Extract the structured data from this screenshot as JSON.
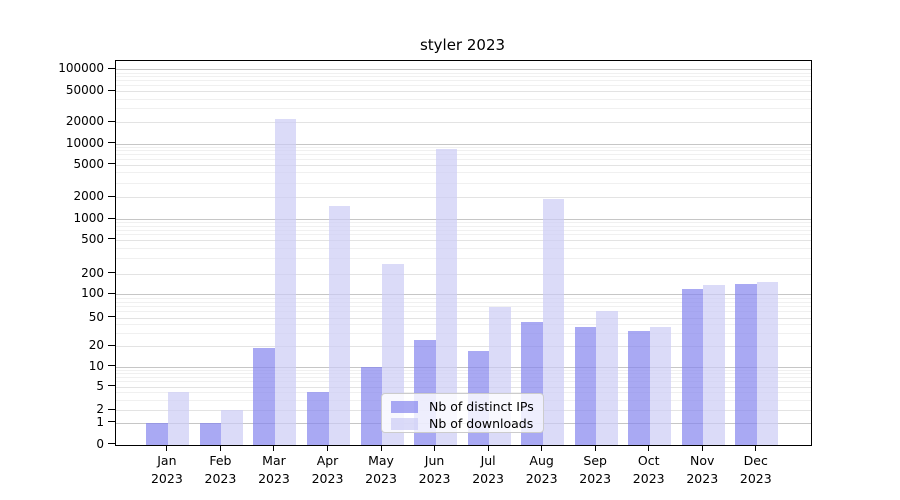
{
  "title": "styler 2023",
  "chart_data": {
    "type": "bar",
    "title": "styler 2023",
    "categories": [
      "Jan 2023",
      "Feb 2023",
      "Mar 2023",
      "Apr 2023",
      "May 2023",
      "Jun 2023",
      "Jul 2023",
      "Aug 2023",
      "Sep 2023",
      "Oct 2023",
      "Nov 2023",
      "Dec 2023"
    ],
    "series": [
      {
        "name": "Nb of distinct IPs",
        "color": "#8484ee",
        "values": [
          1,
          1,
          19,
          4,
          10,
          24,
          17,
          43,
          37,
          32,
          120,
          140
        ]
      },
      {
        "name": "Nb of downloads",
        "color": "#ccccf5",
        "values": [
          4,
          2,
          22000,
          1500,
          260,
          8400,
          68,
          1900,
          60,
          37,
          135,
          150
        ]
      }
    ],
    "bar_alpha": 0.7,
    "xlabel": "",
    "ylabel": "",
    "yscale": "log-like",
    "ylim": [
      0,
      100000
    ],
    "ytick_values": [
      0,
      1,
      2,
      5,
      10,
      20,
      50,
      100,
      200,
      500,
      1000,
      2000,
      5000,
      10000,
      20000,
      50000,
      100000
    ],
    "grid": "horizontal, log minor + major gridlines",
    "legend_position": "inside lower-center"
  },
  "y_axis": {
    "tick_labels": [
      "0",
      "1",
      "2",
      "5",
      "10",
      "20",
      "50",
      "100",
      "200",
      "500",
      "1000",
      "2000",
      "5000",
      "10000",
      "20000",
      "50000",
      "100000"
    ]
  },
  "x_axis": {
    "months": [
      {
        "month": "Jan",
        "year": "2023"
      },
      {
        "month": "Feb",
        "year": "2023"
      },
      {
        "month": "Mar",
        "year": "2023"
      },
      {
        "month": "Apr",
        "year": "2023"
      },
      {
        "month": "May",
        "year": "2023"
      },
      {
        "month": "Jun",
        "year": "2023"
      },
      {
        "month": "Jul",
        "year": "2023"
      },
      {
        "month": "Aug",
        "year": "2023"
      },
      {
        "month": "Sep",
        "year": "2023"
      },
      {
        "month": "Oct",
        "year": "2023"
      },
      {
        "month": "Nov",
        "year": "2023"
      },
      {
        "month": "Dec",
        "year": "2023"
      }
    ]
  },
  "legend": {
    "items": [
      {
        "label": "Nb of distinct IPs",
        "color": "#8484ee"
      },
      {
        "label": "Nb of downloads",
        "color": "#ccccf5"
      }
    ]
  },
  "colors": {
    "ips_bar": "#8484ee",
    "downloads_bar": "#ccccf5",
    "grid_decade": "#c6c6c6",
    "grid_labeled": "#e3e3e3",
    "grid_minor": "#f0f0f0",
    "axis": "#000000"
  }
}
